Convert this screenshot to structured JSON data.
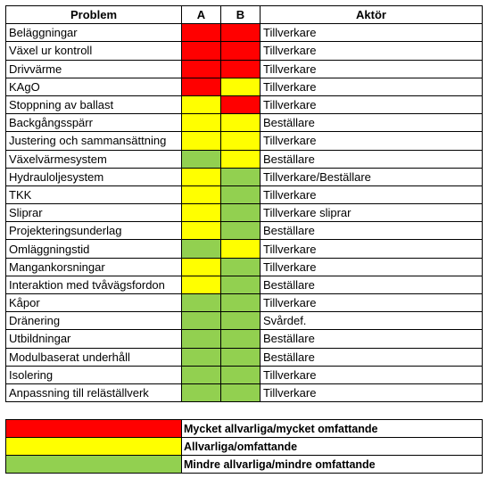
{
  "headers": {
    "problem": "Problem",
    "a": "A",
    "b": "B",
    "actor": "Aktör"
  },
  "colors": {
    "red": "#ff0000",
    "yellow": "#ffff00",
    "green": "#92d050"
  },
  "rows": [
    {
      "problem": "Beläggningar",
      "a": "red",
      "b": "red",
      "actor": "Tillverkare"
    },
    {
      "problem": "Växel ur kontroll",
      "a": "red",
      "b": "red",
      "actor": "Tillverkare"
    },
    {
      "problem": "Drivvärme",
      "a": "red",
      "b": "red",
      "actor": "Tillverkare"
    },
    {
      "problem": "KAgO",
      "a": "red",
      "b": "yellow",
      "actor": "Tillverkare"
    },
    {
      "problem": "Stoppning av ballast",
      "a": "yellow",
      "b": "red",
      "actor": "Tillverkare"
    },
    {
      "problem": "Backgångsspärr",
      "a": "yellow",
      "b": "yellow",
      "actor": "Beställare"
    },
    {
      "problem": "Justering och sammansättning",
      "a": "yellow",
      "b": "yellow",
      "actor": "Tillverkare"
    },
    {
      "problem": "Växelvärmesystem",
      "a": "green",
      "b": "yellow",
      "actor": "Beställare"
    },
    {
      "problem": "Hydrauloljesystem",
      "a": "yellow",
      "b": "green",
      "actor": "Tillverkare/Beställare"
    },
    {
      "problem": "TKK",
      "a": "yellow",
      "b": "green",
      "actor": "Tillverkare"
    },
    {
      "problem": "Sliprar",
      "a": "yellow",
      "b": "green",
      "actor": "Tillverkare sliprar"
    },
    {
      "problem": "Projekteringsunderlag",
      "a": "yellow",
      "b": "green",
      "actor": "Beställare"
    },
    {
      "problem": "Omläggningstid",
      "a": "green",
      "b": "yellow",
      "actor": "Tillverkare"
    },
    {
      "problem": "Mangankorsningar",
      "a": "yellow",
      "b": "green",
      "actor": "Tillverkare"
    },
    {
      "problem": "Interaktion med tvåvägsfordon",
      "a": "yellow",
      "b": "green",
      "actor": "Beställare"
    },
    {
      "problem": "Kåpor",
      "a": "green",
      "b": "green",
      "actor": "Tillverkare"
    },
    {
      "problem": "Dränering",
      "a": "green",
      "b": "green",
      "actor": "Svårdef."
    },
    {
      "problem": "Utbildningar",
      "a": "green",
      "b": "green",
      "actor": "Beställare"
    },
    {
      "problem": "Modulbaserat underhåll",
      "a": "green",
      "b": "green",
      "actor": "Beställare"
    },
    {
      "problem": "Isolering",
      "a": "green",
      "b": "green",
      "actor": "Tillverkare"
    },
    {
      "problem": "Anpassning till reläställverk",
      "a": "green",
      "b": "green",
      "actor": "Tillverkare"
    }
  ],
  "legend": [
    {
      "color": "red",
      "label": "Mycket allvarliga/mycket omfattande"
    },
    {
      "color": "yellow",
      "label": "Allvarliga/omfattande"
    },
    {
      "color": "green",
      "label": "Mindre allvarliga/mindre omfattande"
    }
  ]
}
